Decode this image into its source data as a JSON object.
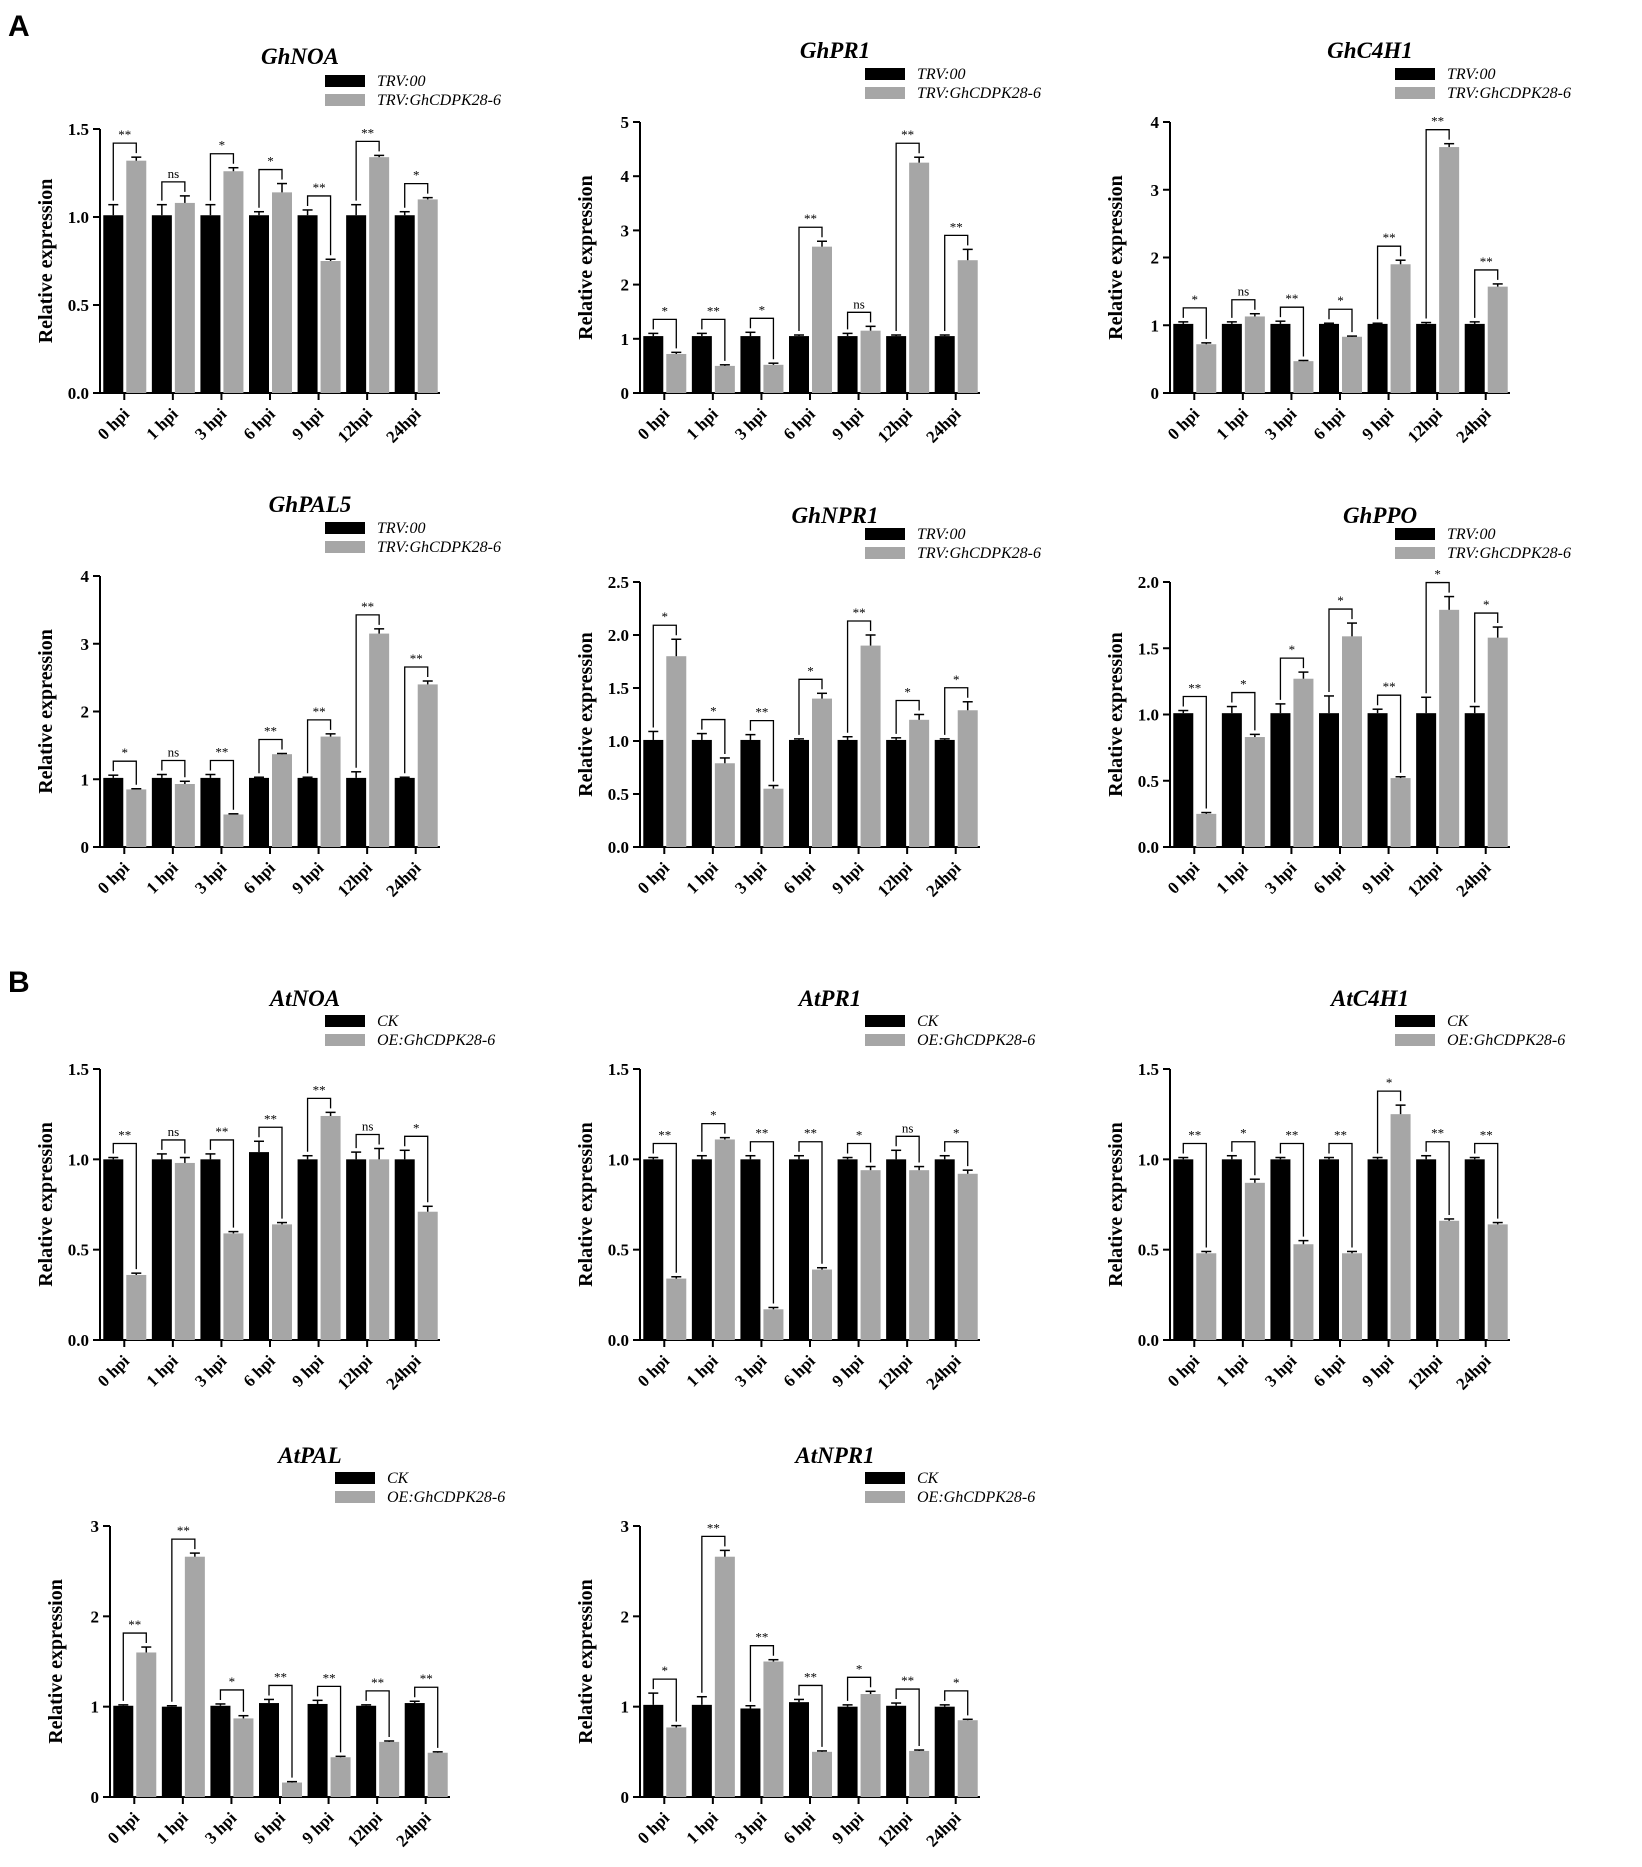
{
  "panels": [
    {
      "label": "A"
    },
    {
      "label": "B"
    }
  ],
  "colors": {
    "control": "#000000",
    "treatment": "#a6a6a6"
  },
  "chart_data": [
    {
      "type": "bar",
      "panel": "A",
      "title": "GhNOA",
      "ylabel": "Relative expression",
      "xlabel": "",
      "categories": [
        "0 hpi",
        "1 hpi",
        "3 hpi",
        "6 hpi",
        "9 hpi",
        "12hpi",
        "24hpi"
      ],
      "ylim": [
        0,
        1.5
      ],
      "yticks": [
        0.0,
        0.5,
        1.0,
        1.5
      ],
      "ytick_labels": [
        "0.0",
        "0.5",
        "1.0",
        "1.5"
      ],
      "series": [
        {
          "name": "TRV:00",
          "values": [
            1.01,
            1.01,
            1.01,
            1.01,
            1.01,
            1.01,
            1.01
          ],
          "errors": [
            0.06,
            0.06,
            0.06,
            0.02,
            0.03,
            0.06,
            0.02
          ]
        },
        {
          "name": "TRV:GhCDPK28-6",
          "values": [
            1.32,
            1.08,
            1.26,
            1.14,
            0.75,
            1.34,
            1.1
          ],
          "errors": [
            0.02,
            0.04,
            0.02,
            0.05,
            0.01,
            0.01,
            0.01
          ]
        }
      ],
      "significance": [
        "**",
        "ns",
        "*",
        "*",
        "**",
        "**",
        "*"
      ],
      "grid": false,
      "legend_position": "top-right"
    },
    {
      "type": "bar",
      "panel": "A",
      "title": "GhPR1",
      "ylabel": "Relative expression",
      "xlabel": "",
      "categories": [
        "0 hpi",
        "1 hpi",
        "3 hpi",
        "6 hpi",
        "9 hpi",
        "12hpi",
        "24hpi"
      ],
      "ylim": [
        0,
        5
      ],
      "yticks": [
        0,
        1,
        2,
        3,
        4,
        5
      ],
      "ytick_labels": [
        "0",
        "1",
        "2",
        "3",
        "4",
        "5"
      ],
      "series": [
        {
          "name": "TRV:00",
          "values": [
            1.05,
            1.05,
            1.05,
            1.05,
            1.05,
            1.05,
            1.05
          ],
          "errors": [
            0.05,
            0.05,
            0.07,
            0.02,
            0.05,
            0.02,
            0.02
          ]
        },
        {
          "name": "TRV:GhCDPK28-6",
          "values": [
            0.72,
            0.5,
            0.52,
            2.7,
            1.15,
            4.25,
            2.45
          ],
          "errors": [
            0.03,
            0.02,
            0.03,
            0.1,
            0.08,
            0.1,
            0.2
          ]
        }
      ],
      "significance": [
        "*",
        "**",
        "*",
        "**",
        "ns",
        "**",
        "**"
      ],
      "grid": false,
      "legend_position": "top-right"
    },
    {
      "type": "bar",
      "panel": "A",
      "title": "GhC4H1",
      "ylabel": "Relative expression",
      "xlabel": "",
      "categories": [
        "0 hpi",
        "1 hpi",
        "3 hpi",
        "6 hpi",
        "9 hpi",
        "12hpi",
        "24hpi"
      ],
      "ylim": [
        0,
        4
      ],
      "yticks": [
        0,
        1,
        2,
        3,
        4
      ],
      "ytick_labels": [
        "0",
        "1",
        "2",
        "3",
        "4"
      ],
      "series": [
        {
          "name": "TRV:00",
          "values": [
            1.02,
            1.02,
            1.02,
            1.02,
            1.02,
            1.02,
            1.02
          ],
          "errors": [
            0.03,
            0.03,
            0.04,
            0.01,
            0.01,
            0.02,
            0.03
          ]
        },
        {
          "name": "TRV:GhCDPK28-6",
          "values": [
            0.72,
            1.13,
            0.47,
            0.83,
            1.9,
            3.63,
            1.57
          ],
          "errors": [
            0.02,
            0.04,
            0.01,
            0.01,
            0.06,
            0.05,
            0.04
          ]
        }
      ],
      "significance": [
        "*",
        "ns",
        "**",
        "*",
        "**",
        "**",
        "**"
      ],
      "grid": false,
      "legend_position": "top-right"
    },
    {
      "type": "bar",
      "panel": "A",
      "title": "GhPAL5",
      "ylabel": "Relative expression",
      "xlabel": "",
      "categories": [
        "0 hpi",
        "1 hpi",
        "3 hpi",
        "6 hpi",
        "9 hpi",
        "12hpi",
        "24hpi"
      ],
      "ylim": [
        0,
        4
      ],
      "yticks": [
        0,
        1,
        2,
        3,
        4
      ],
      "ytick_labels": [
        "0",
        "1",
        "2",
        "3",
        "4"
      ],
      "series": [
        {
          "name": "TRV:00",
          "values": [
            1.02,
            1.02,
            1.02,
            1.02,
            1.02,
            1.02,
            1.02
          ],
          "errors": [
            0.04,
            0.05,
            0.05,
            0.01,
            0.01,
            0.09,
            0.01
          ]
        },
        {
          "name": "TRV:GhCDPK28-6",
          "values": [
            0.85,
            0.93,
            0.48,
            1.37,
            1.63,
            3.15,
            2.4
          ],
          "errors": [
            0.01,
            0.04,
            0.01,
            0.01,
            0.04,
            0.07,
            0.05
          ]
        }
      ],
      "significance": [
        "*",
        "ns",
        "**",
        "**",
        "**",
        "**",
        "**"
      ],
      "grid": false,
      "legend_position": "top-right"
    },
    {
      "type": "bar",
      "panel": "A",
      "title": "GhNPR1",
      "ylabel": "Relative expression",
      "xlabel": "",
      "categories": [
        "0 hpi",
        "1 hpi",
        "3 hpi",
        "6 hpi",
        "9 hpi",
        "12hpi",
        "24hpi"
      ],
      "ylim": [
        0,
        2.5
      ],
      "yticks": [
        0.0,
        0.5,
        1.0,
        1.5,
        2.0,
        2.5
      ],
      "ytick_labels": [
        "0.0",
        "0.5",
        "1.0",
        "1.5",
        "2.0",
        "2.5"
      ],
      "series": [
        {
          "name": "TRV:00",
          "values": [
            1.01,
            1.01,
            1.01,
            1.01,
            1.01,
            1.01,
            1.01
          ],
          "errors": [
            0.08,
            0.06,
            0.05,
            0.01,
            0.03,
            0.02,
            0.01
          ]
        },
        {
          "name": "TRV:GhCDPK28-6",
          "values": [
            1.8,
            0.79,
            0.55,
            1.4,
            1.9,
            1.2,
            1.29
          ],
          "errors": [
            0.16,
            0.05,
            0.03,
            0.05,
            0.1,
            0.05,
            0.08
          ]
        }
      ],
      "significance": [
        "*",
        "*",
        "**",
        "*",
        "**",
        "*",
        "*"
      ],
      "grid": false,
      "legend_position": "top-right"
    },
    {
      "type": "bar",
      "panel": "A",
      "title": "GhPPO",
      "ylabel": "Relative expression",
      "xlabel": "",
      "categories": [
        "0 hpi",
        "1 hpi",
        "3 hpi",
        "6 hpi",
        "9 hpi",
        "12hpi",
        "24hpi"
      ],
      "ylim": [
        0,
        2.0
      ],
      "yticks": [
        0.0,
        0.5,
        1.0,
        1.5,
        2.0
      ],
      "ytick_labels": [
        "0.0",
        "0.5",
        "1.0",
        "1.5",
        "2.0"
      ],
      "series": [
        {
          "name": "TRV:00",
          "values": [
            1.01,
            1.01,
            1.01,
            1.01,
            1.01,
            1.01,
            1.01
          ],
          "errors": [
            0.02,
            0.05,
            0.07,
            0.13,
            0.03,
            0.12,
            0.05
          ]
        },
        {
          "name": "TRV:GhCDPK28-6",
          "values": [
            0.25,
            0.83,
            1.27,
            1.59,
            0.52,
            1.79,
            1.58
          ],
          "errors": [
            0.01,
            0.02,
            0.05,
            0.1,
            0.01,
            0.1,
            0.08
          ]
        }
      ],
      "significance": [
        "**",
        "*",
        "*",
        "*",
        "**",
        "*",
        "*"
      ],
      "grid": false,
      "legend_position": "top-right"
    },
    {
      "type": "bar",
      "panel": "B",
      "title": "AtNOA",
      "ylabel": "Relative expression",
      "xlabel": "",
      "categories": [
        "0 hpi",
        "1 hpi",
        "3 hpi",
        "6 hpi",
        "9 hpi",
        "12hpi",
        "24hpi"
      ],
      "ylim": [
        0,
        1.5
      ],
      "yticks": [
        0.0,
        0.5,
        1.0,
        1.5
      ],
      "ytick_labels": [
        "0.0",
        "0.5",
        "1.0",
        "1.5"
      ],
      "series": [
        {
          "name": "CK",
          "values": [
            1.0,
            1.0,
            1.0,
            1.04,
            1.0,
            1.0,
            1.0
          ],
          "errors": [
            0.01,
            0.03,
            0.03,
            0.06,
            0.02,
            0.04,
            0.05
          ]
        },
        {
          "name": "OE:GhCDPK28-6",
          "values": [
            0.36,
            0.98,
            0.59,
            0.64,
            1.24,
            1.0,
            0.71
          ],
          "errors": [
            0.01,
            0.03,
            0.01,
            0.01,
            0.02,
            0.06,
            0.03
          ]
        }
      ],
      "significance": [
        "**",
        "ns",
        "**",
        "**",
        "**",
        "ns",
        "*"
      ],
      "grid": false,
      "legend_position": "top-right"
    },
    {
      "type": "bar",
      "panel": "B",
      "title": "AtPR1",
      "ylabel": "Relative expression",
      "xlabel": "",
      "categories": [
        "0 hpi",
        "1 hpi",
        "3 hpi",
        "6 hpi",
        "9 hpi",
        "12hpi",
        "24hpi"
      ],
      "ylim": [
        0,
        1.5
      ],
      "yticks": [
        0.0,
        0.5,
        1.0,
        1.5
      ],
      "ytick_labels": [
        "0.0",
        "0.5",
        "1.0",
        "1.5"
      ],
      "series": [
        {
          "name": "CK",
          "values": [
            1.0,
            1.0,
            1.0,
            1.0,
            1.0,
            1.0,
            1.0
          ],
          "errors": [
            0.01,
            0.02,
            0.02,
            0.02,
            0.01,
            0.05,
            0.02
          ]
        },
        {
          "name": "OE:GhCDPK28-6",
          "values": [
            0.34,
            1.11,
            0.17,
            0.39,
            0.94,
            0.94,
            0.92
          ],
          "errors": [
            0.01,
            0.01,
            0.01,
            0.01,
            0.02,
            0.02,
            0.02
          ]
        }
      ],
      "significance": [
        "**",
        "*",
        "**",
        "**",
        "*",
        "ns",
        "*"
      ],
      "grid": false,
      "legend_position": "top-right"
    },
    {
      "type": "bar",
      "panel": "B",
      "title": "AtC4H1",
      "ylabel": "Relative expression",
      "xlabel": "",
      "categories": [
        "0 hpi",
        "1 hpi",
        "3 hpi",
        "6 hpi",
        "9 hpi",
        "12hpi",
        "24hpi"
      ],
      "ylim": [
        0,
        1.5
      ],
      "yticks": [
        0.0,
        0.5,
        1.0,
        1.5
      ],
      "ytick_labels": [
        "0.0",
        "0.5",
        "1.0",
        "1.5"
      ],
      "series": [
        {
          "name": "CK",
          "values": [
            1.0,
            1.0,
            1.0,
            1.0,
            1.0,
            1.0,
            1.0
          ],
          "errors": [
            0.01,
            0.02,
            0.01,
            0.01,
            0.01,
            0.02,
            0.01
          ]
        },
        {
          "name": "OE:GhCDPK28-6",
          "values": [
            0.48,
            0.87,
            0.53,
            0.48,
            1.25,
            0.66,
            0.64
          ],
          "errors": [
            0.01,
            0.02,
            0.02,
            0.01,
            0.05,
            0.01,
            0.01
          ]
        }
      ],
      "significance": [
        "**",
        "*",
        "**",
        "**",
        "*",
        "**",
        "**"
      ],
      "grid": false,
      "legend_position": "top-right"
    },
    {
      "type": "bar",
      "panel": "B",
      "title": "AtPAL",
      "ylabel": "Relative expression",
      "xlabel": "",
      "categories": [
        "0 hpi",
        "1 hpi",
        "3 hpi",
        "6 hpi",
        "9 hpi",
        "12hpi",
        "24hpi"
      ],
      "ylim": [
        0,
        3
      ],
      "yticks": [
        0,
        1,
        2,
        3
      ],
      "ytick_labels": [
        "0",
        "1",
        "2",
        "3"
      ],
      "series": [
        {
          "name": "CK",
          "values": [
            1.01,
            1.0,
            1.01,
            1.04,
            1.03,
            1.01,
            1.04
          ],
          "errors": [
            0.01,
            0.01,
            0.02,
            0.04,
            0.04,
            0.01,
            0.02
          ]
        },
        {
          "name": "OE:GhCDPK28-6",
          "values": [
            1.6,
            2.66,
            0.87,
            0.16,
            0.44,
            0.61,
            0.49
          ],
          "errors": [
            0.06,
            0.04,
            0.03,
            0.01,
            0.01,
            0.01,
            0.01
          ]
        }
      ],
      "significance": [
        "**",
        "**",
        "*",
        "**",
        "**",
        "**",
        "**"
      ],
      "grid": false,
      "legend_position": "top-right"
    },
    {
      "type": "bar",
      "panel": "B",
      "title": "AtNPR1",
      "ylabel": "Relative expression",
      "xlabel": "",
      "categories": [
        "0 hpi",
        "1 hpi",
        "3 hpi",
        "6 hpi",
        "9 hpi",
        "12hpi",
        "24hpi"
      ],
      "ylim": [
        0,
        3
      ],
      "yticks": [
        0,
        1,
        2,
        3
      ],
      "ytick_labels": [
        "0",
        "1",
        "2",
        "3"
      ],
      "series": [
        {
          "name": "CK",
          "values": [
            1.02,
            1.02,
            0.98,
            1.05,
            1.0,
            1.01,
            1.0
          ],
          "errors": [
            0.13,
            0.09,
            0.03,
            0.03,
            0.02,
            0.03,
            0.02
          ]
        },
        {
          "name": "OE:GhCDPK28-6",
          "values": [
            0.77,
            2.66,
            1.5,
            0.5,
            1.14,
            0.51,
            0.85
          ],
          "errors": [
            0.02,
            0.07,
            0.02,
            0.01,
            0.03,
            0.01,
            0.01
          ]
        }
      ],
      "significance": [
        "*",
        "**",
        "**",
        "**",
        "*",
        "**",
        "*"
      ],
      "grid": false,
      "legend_position": "top-right"
    }
  ]
}
